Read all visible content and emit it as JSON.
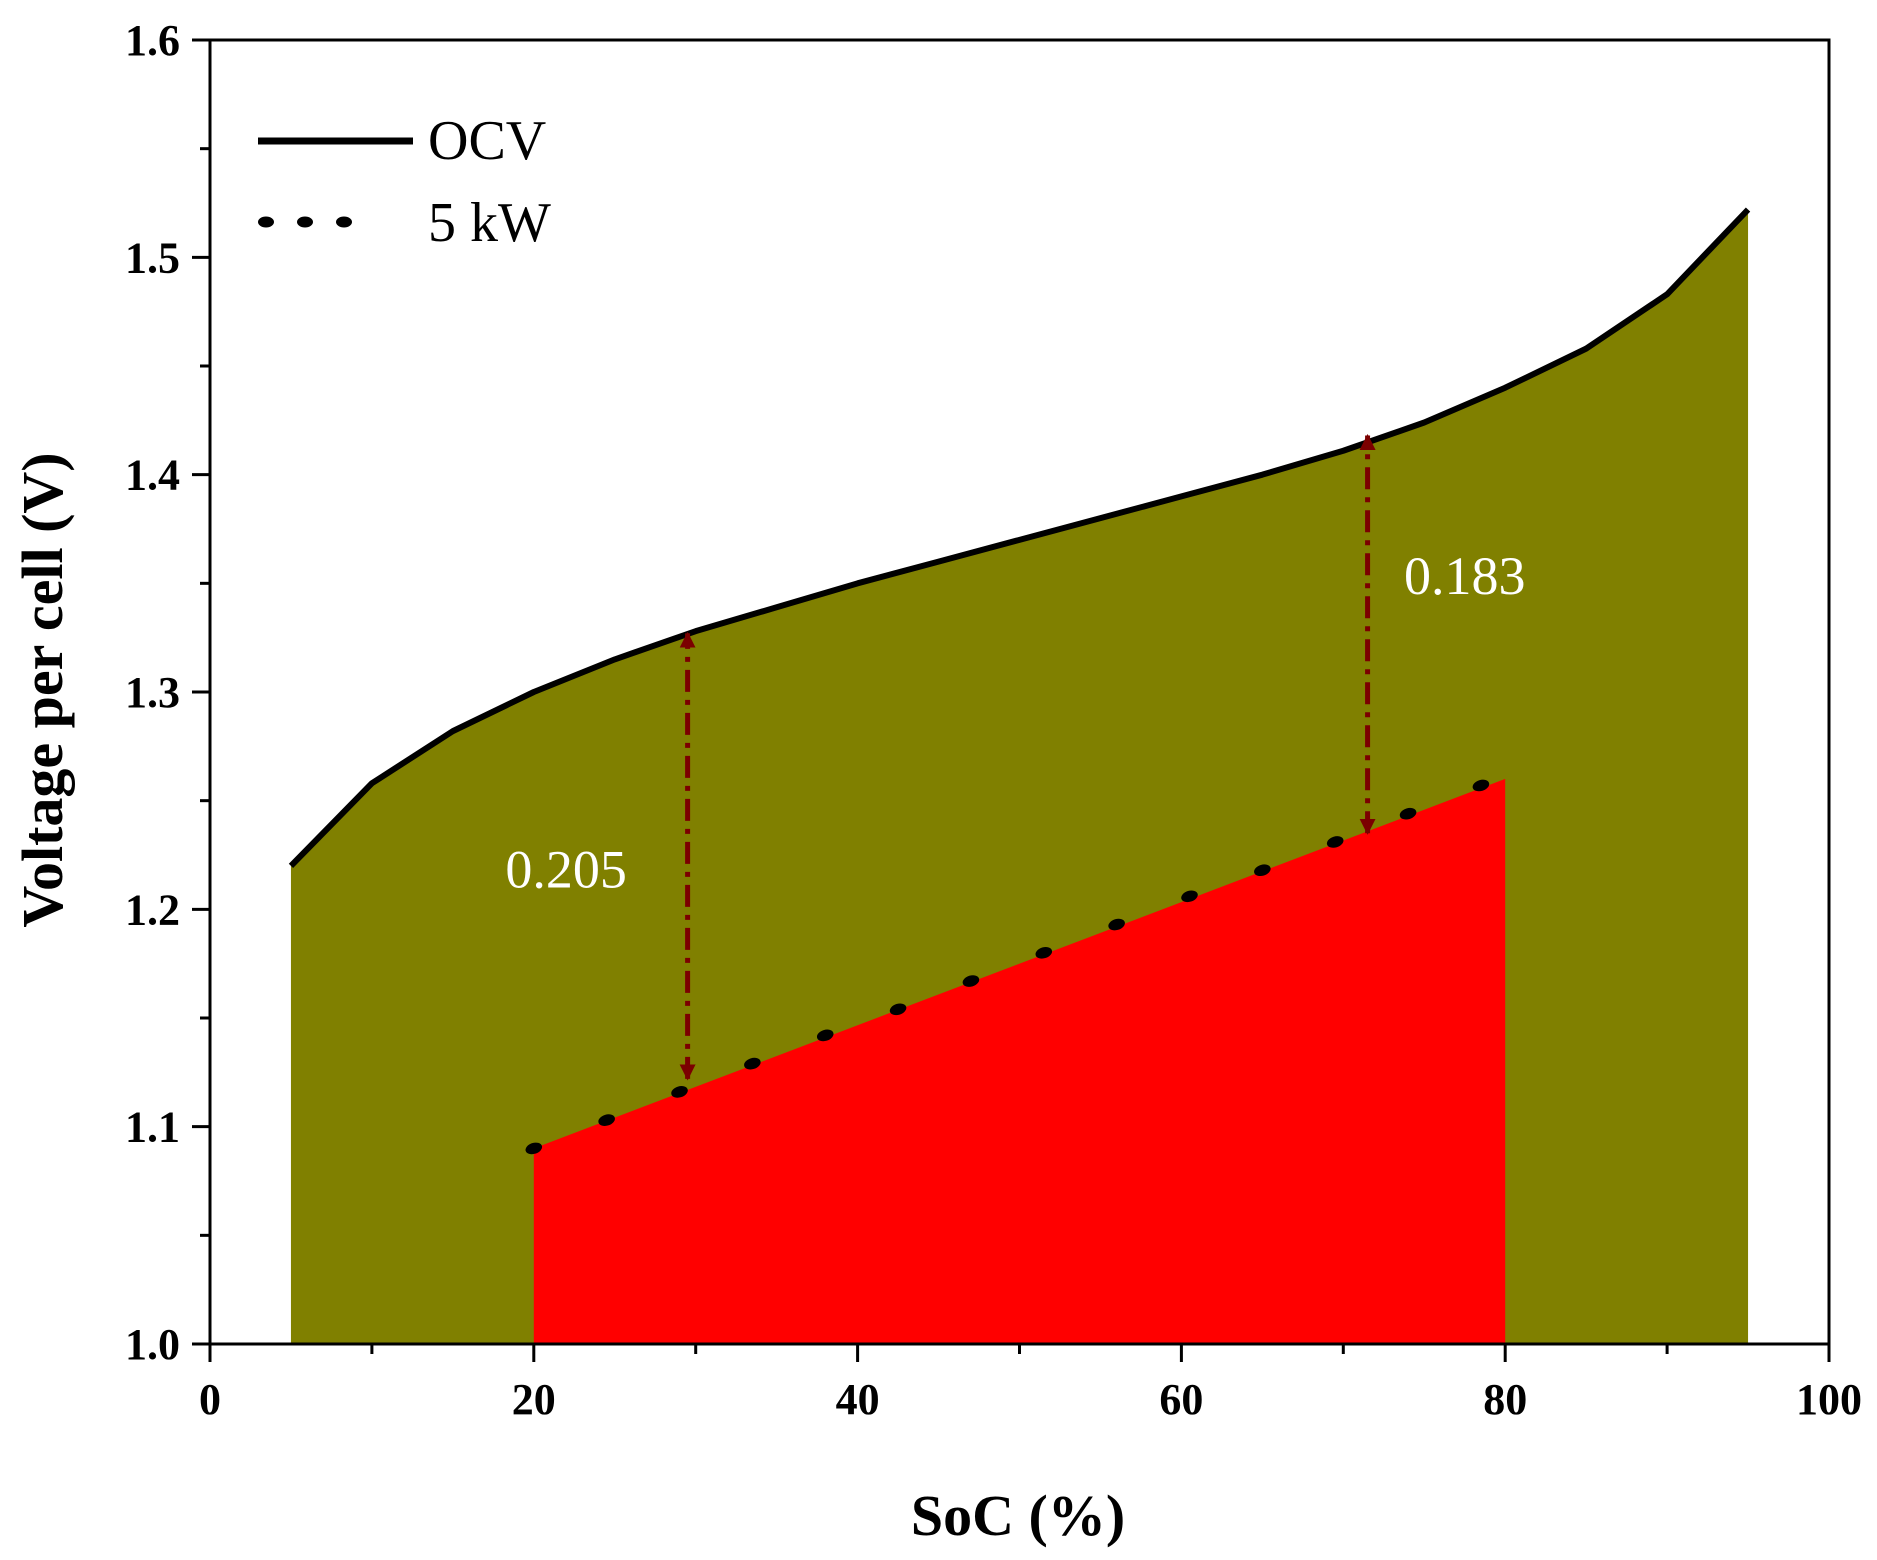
{
  "chart_data": {
    "type": "area",
    "xlabel": "SoC (%)",
    "ylabel": "Voltage per cell (V)",
    "xlim": [
      0,
      100
    ],
    "ylim": [
      1.0,
      1.6
    ],
    "xticks": [
      0,
      20,
      40,
      60,
      80,
      100
    ],
    "xtick_labels": [
      "0",
      "20",
      "40",
      "60",
      "80",
      "100"
    ],
    "yticks": [
      1.0,
      1.1,
      1.2,
      1.3,
      1.4,
      1.5,
      1.6
    ],
    "ytick_labels": [
      "1.0",
      "1.1",
      "1.2",
      "1.3",
      "1.4",
      "1.5",
      "1.6"
    ],
    "legend_position": "top-left",
    "series": [
      {
        "name": "OCV",
        "style": "solid",
        "fill_color": "#808000",
        "line_color": "#000000",
        "x": [
          5,
          10,
          15,
          20,
          25,
          30,
          35,
          40,
          45,
          50,
          55,
          60,
          65,
          70,
          75,
          80,
          85,
          90,
          95
        ],
        "y": [
          1.22,
          1.258,
          1.282,
          1.3,
          1.315,
          1.328,
          1.339,
          1.35,
          1.36,
          1.37,
          1.38,
          1.39,
          1.4,
          1.411,
          1.424,
          1.44,
          1.458,
          1.483,
          1.522
        ]
      },
      {
        "name": "5 kW",
        "style": "dotted",
        "fill_color": "#ff0000",
        "line_color": "#000000",
        "x": [
          20,
          80
        ],
        "y": [
          1.09,
          1.26
        ],
        "marker_x": [
          20,
          24.5,
          29,
          33.5,
          38,
          42.5,
          47,
          51.5,
          56,
          60.5,
          65,
          69.5,
          74,
          78.5
        ],
        "marker_y": [
          1.09,
          1.103,
          1.116,
          1.129,
          1.142,
          1.154,
          1.167,
          1.18,
          1.193,
          1.206,
          1.218,
          1.231,
          1.244,
          1.257
        ]
      }
    ],
    "annotations": [
      {
        "label": "0.205",
        "x": 29.5,
        "y_top": 1.327,
        "y_bottom": 1.122,
        "label_x": 22,
        "label_y": 1.21,
        "color": "#7b0000"
      },
      {
        "label": "0.183",
        "x": 71.5,
        "y_top": 1.418,
        "y_bottom": 1.235,
        "label_x": 77.5,
        "label_y": 1.345,
        "color": "#7b0000"
      }
    ]
  }
}
